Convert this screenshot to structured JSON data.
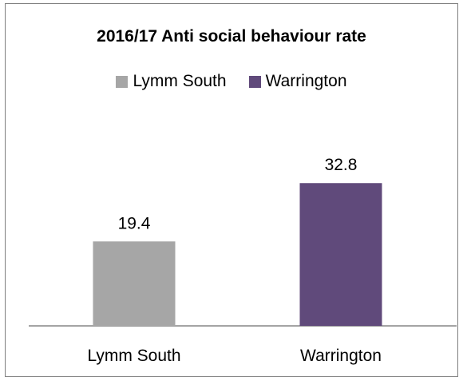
{
  "chart_data": {
    "type": "bar",
    "title": "2016/17 Anti social behaviour rate",
    "categories": [
      "Lymm South",
      "Warrington"
    ],
    "values": [
      19.4,
      32.8
    ],
    "colors": [
      "#a6a6a6",
      "#604a7b"
    ],
    "legend": {
      "placement": "top",
      "entries": [
        "Lymm South",
        "Warrington"
      ]
    },
    "grid": false,
    "ylim": [
      0,
      40
    ]
  }
}
